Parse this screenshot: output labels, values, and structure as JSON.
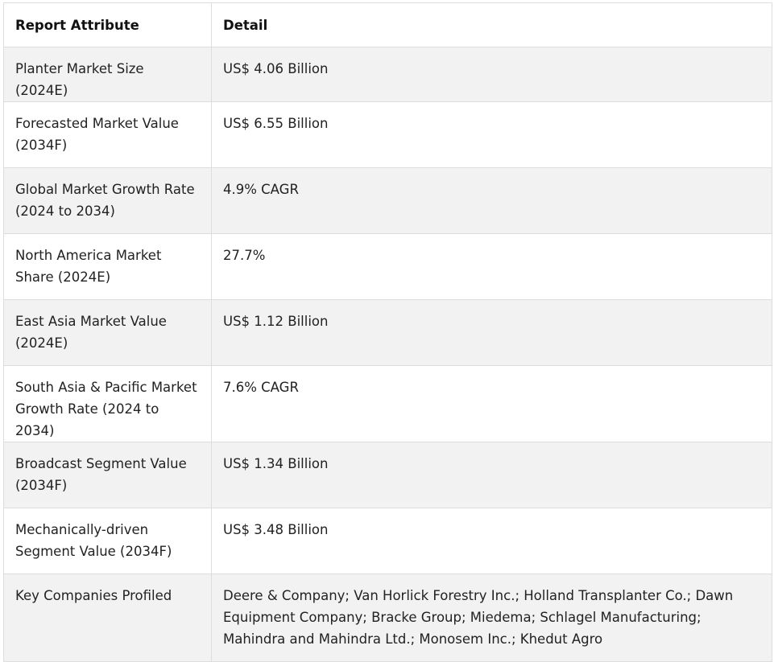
{
  "table": {
    "headers": [
      "Report Attribute",
      "Detail"
    ],
    "rows": [
      [
        "Planter Market Size (2024E)",
        "US$ 4.06 Billion"
      ],
      [
        "Forecasted Market Value (2034F)",
        "US$ 6.55 Billion"
      ],
      [
        "Global Market Growth Rate (2024 to 2034)",
        "4.9% CAGR"
      ],
      [
        "North America Market Share (2024E)",
        "27.7%"
      ],
      [
        "East Asia Market Value (2024E)",
        "US$ 1.12 Billion"
      ],
      [
        "South Asia & Pacific Market Growth Rate (2024 to 2034)",
        "7.6% CAGR"
      ],
      [
        "Broadcast Segment Value (2034F)",
        "US$ 1.34 Billion"
      ],
      [
        "Mechanically-driven Segment Value (2034F)",
        "US$ 3.48 Billion"
      ],
      [
        "Key Companies Profiled",
        "Deere & Company; Van Horlick Forestry Inc.; Holland Transplanter Co.; Dawn Equipment Company; Bracke Group; Miedema; Schlagel Manufacturing; Mahindra and Mahindra Ltd.; Monosem Inc.; Khedut Agro"
      ]
    ]
  }
}
